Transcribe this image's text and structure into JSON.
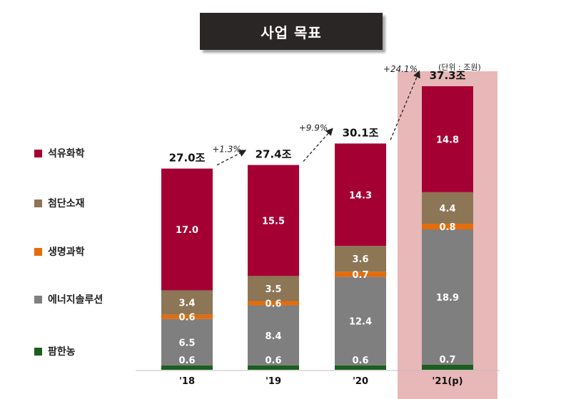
{
  "header": {
    "title": "사업 목표"
  },
  "unit_label": "(단위 : 조원)",
  "chart_data": {
    "type": "bar",
    "stacked": true,
    "categories": [
      "'18",
      "'19",
      "'20",
      "'21(p)"
    ],
    "series": [
      {
        "name": "팜한농",
        "color": "#1b5e20",
        "values": [
          0.6,
          0.6,
          0.6,
          0.7
        ]
      },
      {
        "name": "에너지솔루션",
        "color": "#7f7f7f",
        "values": [
          6.5,
          8.4,
          12.4,
          18.9
        ]
      },
      {
        "name": "생명과학",
        "color": "#e46c0a",
        "values": [
          0.6,
          0.6,
          0.7,
          0.8
        ]
      },
      {
        "name": "첨단소재",
        "color": "#8c7656",
        "values": [
          3.4,
          3.5,
          3.6,
          4.4
        ]
      },
      {
        "name": "석유화학",
        "color": "#a50034",
        "values": [
          17.0,
          15.5,
          14.3,
          14.8
        ]
      }
    ],
    "totals": [
      "27.0조",
      "27.4조",
      "30.1조",
      "37.3조"
    ],
    "growth": [
      "+1.3%",
      "+9.9%",
      "+24.1%"
    ],
    "highlight_category": "'21(p)",
    "highlight_color": "#e8b7b7",
    "legend_order": [
      "석유화학",
      "첨단소재",
      "생명과학",
      "에너지솔루션",
      "팜한농"
    ],
    "legend_position": "left"
  }
}
